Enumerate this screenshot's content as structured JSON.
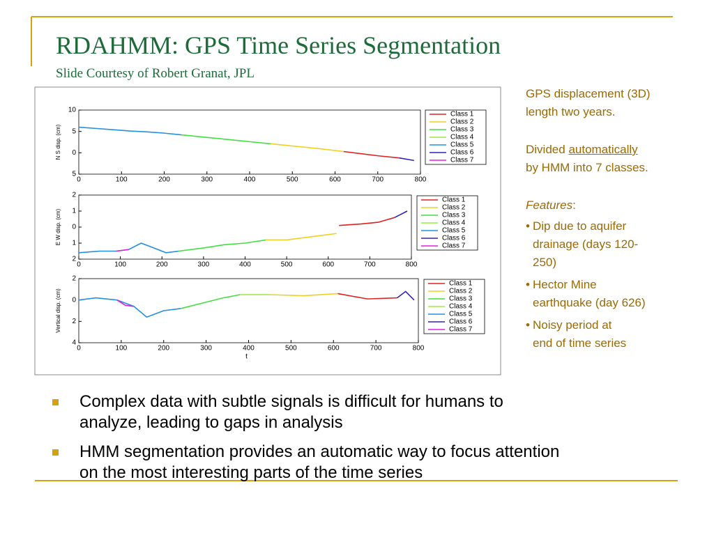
{
  "header": {
    "title": "RDAHMM: GPS Time Series Segmentation",
    "subtitle": "Slide Courtesy of Robert Granat, JPL"
  },
  "chart_data": [
    {
      "type": "line",
      "ylabel": "N  S disp. (cm)",
      "xlim": [
        0,
        800
      ],
      "xticks": [
        0,
        100,
        200,
        300,
        400,
        500,
        600,
        700,
        800
      ],
      "ylim": [
        -5,
        10
      ],
      "yticks": [
        10,
        5,
        0,
        {
          "value": -5,
          "label": "5"
        }
      ],
      "series": [
        {
          "name": "Class 1",
          "color": "#e02020",
          "x": [
            620,
            660,
            700,
            750
          ],
          "values": [
            0.3,
            -0.2,
            -0.7,
            -1.2
          ]
        },
        {
          "name": "Class 2",
          "color": "#f0d020",
          "x": [
            450,
            500,
            560,
            620
          ],
          "values": [
            2.1,
            1.6,
            1.0,
            0.3
          ]
        },
        {
          "name": "Class 3",
          "color": "#40e040",
          "x": [
            240,
            280,
            320,
            360,
            400,
            450
          ],
          "values": [
            4.2,
            3.8,
            3.4,
            3.0,
            2.6,
            2.1
          ]
        },
        {
          "name": "Class 4",
          "color": "#a0e840",
          "x": [],
          "values": []
        },
        {
          "name": "Class 5",
          "color": "#2090e0",
          "x": [
            0,
            40,
            80,
            120,
            160,
            200,
            240
          ],
          "values": [
            6.0,
            5.7,
            5.4,
            5.1,
            4.9,
            4.6,
            4.2
          ]
        },
        {
          "name": "Class 6",
          "color": "#3020c0",
          "x": [
            750,
            785
          ],
          "values": [
            -1.2,
            -1.8
          ]
        },
        {
          "name": "Class 7",
          "color": "#e020e0",
          "x": [],
          "values": []
        }
      ]
    },
    {
      "type": "line",
      "ylabel": "E  W disp. (cm)",
      "xlim": [
        0,
        800
      ],
      "xticks": [
        0,
        100,
        200,
        300,
        400,
        500,
        600,
        700,
        800
      ],
      "ylim": [
        -2,
        2
      ],
      "yticks": [
        2,
        1,
        0,
        {
          "value": -1,
          "label": "1"
        },
        {
          "value": -2,
          "label": "2"
        }
      ],
      "series": [
        {
          "name": "Class 1",
          "color": "#e02020",
          "x": [
            626,
            680,
            720,
            760
          ],
          "values": [
            0.1,
            0.2,
            0.3,
            0.6
          ]
        },
        {
          "name": "Class 2",
          "color": "#f0d020",
          "x": [
            450,
            500,
            560,
            620
          ],
          "values": [
            -0.8,
            -0.8,
            -0.6,
            -0.4
          ]
        },
        {
          "name": "Class 3",
          "color": "#40e040",
          "x": [
            240,
            300,
            350,
            400,
            450
          ],
          "values": [
            -1.5,
            -1.3,
            -1.1,
            -1.0,
            -0.8
          ]
        },
        {
          "name": "Class 4",
          "color": "#a0e840",
          "x": [],
          "values": []
        },
        {
          "name": "Class 5",
          "color": "#2090e0",
          "x": [
            0,
            50,
            90,
            120,
            150,
            180,
            210,
            240
          ],
          "values": [
            -1.6,
            -1.5,
            -1.5,
            -1.4,
            -1.0,
            -1.3,
            -1.6,
            -1.5
          ]
        },
        {
          "name": "Class 6",
          "color": "#3020c0",
          "x": [
            760,
            790
          ],
          "values": [
            0.6,
            1.0
          ]
        },
        {
          "name": "Class 7",
          "color": "#e020e0",
          "x": [
            90,
            120
          ],
          "values": [
            -1.5,
            -1.4
          ]
        }
      ]
    },
    {
      "type": "line",
      "ylabel": "Vertical disp. (cm)",
      "xlabel": "t",
      "xlim": [
        0,
        800
      ],
      "xticks": [
        0,
        100,
        200,
        300,
        400,
        500,
        600,
        700,
        800
      ],
      "ylim": [
        -4,
        2
      ],
      "yticks": [
        2,
        0,
        {
          "value": -2,
          "label": "2"
        },
        {
          "value": -4,
          "label": "4"
        }
      ],
      "series": [
        {
          "name": "Class 1",
          "color": "#e02020",
          "x": [
            610,
            680,
            750
          ],
          "values": [
            0.6,
            0.1,
            0.2
          ]
        },
        {
          "name": "Class 2",
          "color": "#f0d020",
          "x": [
            450,
            530,
            610
          ],
          "values": [
            0.5,
            0.4,
            0.6
          ]
        },
        {
          "name": "Class 3",
          "color": "#40e040",
          "x": [
            240,
            300,
            340,
            380
          ],
          "values": [
            -0.8,
            -0.2,
            0.2,
            0.5
          ]
        },
        {
          "name": "Class 4",
          "color": "#a0e840",
          "x": [
            380,
            450
          ],
          "values": [
            0.5,
            0.5
          ]
        },
        {
          "name": "Class 5",
          "color": "#2090e0",
          "x": [
            0,
            40,
            90,
            130,
            160,
            200,
            240
          ],
          "values": [
            0.0,
            0.2,
            0.0,
            -0.6,
            -1.6,
            -1.0,
            -0.8
          ]
        },
        {
          "name": "Class 6",
          "color": "#3020c0",
          "x": [
            750,
            770,
            790
          ],
          "values": [
            0.2,
            0.8,
            0.0
          ]
        },
        {
          "name": "Class 7",
          "color": "#e020e0",
          "x": [
            90,
            110,
            130
          ],
          "values": [
            0.0,
            -0.5,
            -0.6
          ]
        }
      ]
    }
  ],
  "notes": {
    "gps": [
      "GPS displacement (3D)",
      "length two years."
    ],
    "divided": {
      "before": "Divided",
      "underlined": "automatically",
      "after": "by HMM into 7 classes."
    },
    "features": {
      "label": "Features",
      "colon": ":"
    },
    "feature_bullets": [
      [
        "Dip due to aquifer",
        "drainage (days 120-",
        "250)"
      ],
      [
        "Hector Mine",
        "earthquake (day 626)"
      ],
      [
        "Noisy period at",
        "end of time series"
      ]
    ]
  },
  "bullets": [
    [
      "Complex data with subtle signals is difficult for humans to",
      "analyze, leading to gaps in analysis"
    ],
    [
      "HMM segmentation provides an automatic way to focus attention",
      "on the most interesting parts of the time series"
    ]
  ]
}
